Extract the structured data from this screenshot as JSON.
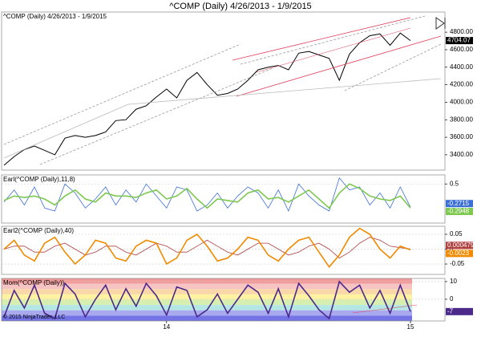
{
  "chart_data": [
    {
      "type": "line",
      "title": "^COMP (Daily)  4/26/2013 - 1/9/2015",
      "series": [
        {
          "color": "#000000",
          "values": [
            3280,
            3380,
            3460,
            3500,
            3450,
            3400,
            3590,
            3620,
            3600,
            3620,
            3660,
            3790,
            3800,
            3920,
            3960,
            4060,
            4150,
            4050,
            4250,
            4340,
            4200,
            4080,
            4100,
            4150,
            4250,
            4370,
            4400,
            4420,
            4370,
            4560,
            4580,
            4540,
            4500,
            4250,
            4550,
            4680,
            4760,
            4780,
            4650,
            4790,
            4704.07
          ],
          "last_label_color": "#000000"
        }
      ],
      "ylim": [
        3225,
        5030
      ],
      "yticks": [
        {
          "value": 3400,
          "label": "3400.00"
        },
        {
          "value": 3600,
          "label": "3600.00"
        },
        {
          "value": 3800,
          "label": "3800.00"
        },
        {
          "value": 4000,
          "label": "4000.00"
        },
        {
          "value": 4200,
          "label": "4200.00"
        },
        {
          "value": 4400,
          "label": "4400.00"
        },
        {
          "value": 4600,
          "label": "4600.00"
        },
        {
          "value": 4800,
          "label": "4800.00"
        }
      ]
    },
    {
      "type": "line",
      "title": "Earl(^COMP (Daily),11,8)",
      "series": [
        {
          "color": "#3b6fd6",
          "values": [
            -0.1,
            0.3,
            -0.2,
            0.4,
            -0.3,
            -0.4,
            0.5,
            0.2,
            -0.3,
            0.0,
            0.4,
            -0.2,
            0.3,
            -0.1,
            0.5,
            0.1,
            -0.3,
            0.4,
            0.3,
            -0.4,
            -0.2,
            0.2,
            -0.3,
            0.1,
            0.4,
            0.2,
            -0.3,
            0.3,
            -0.4,
            0.5,
            0.1,
            -0.2,
            -0.4,
            0.7,
            0.3,
            0.4,
            -0.2,
            0.2,
            -0.3,
            0.4,
            -0.2715
          ]
        },
        {
          "color": "#7ec850",
          "values": [
            -0.05,
            0.1,
            0.05,
            0.1,
            0.0,
            -0.2,
            0.1,
            0.3,
            0.0,
            -0.1,
            0.2,
            0.1,
            0.1,
            0.05,
            0.2,
            0.3,
            0.0,
            0.1,
            0.35,
            0.0,
            -0.3,
            0.0,
            -0.05,
            -0.1,
            0.2,
            0.3,
            0.0,
            0.05,
            -0.1,
            0.1,
            0.3,
            0.0,
            -0.3,
            0.2,
            0.5,
            0.35,
            0.1,
            0.0,
            -0.05,
            0.1,
            -0.2948
          ]
        }
      ],
      "ylim": [
        -0.8,
        0.8
      ],
      "yticks": [
        0.5
      ]
    },
    {
      "type": "line",
      "title": "Earl2(^COMP (Daily),40)",
      "series": [
        {
          "color": "#b04040",
          "values": [
            0.0,
            0.01,
            0.01,
            -0.01,
            -0.01,
            0.01,
            0.02,
            0.0,
            -0.02,
            -0.01,
            0.01,
            0.01,
            -0.01,
            -0.02,
            0.0,
            0.02,
            0.01,
            -0.01,
            -0.01,
            0.01,
            0.03,
            0.01,
            -0.01,
            -0.02,
            0.0,
            0.02,
            0.02,
            0.0,
            -0.02,
            -0.01,
            0.01,
            0.02,
            0.0,
            -0.03,
            -0.01,
            0.02,
            0.04,
            0.03,
            0.01,
            0.005,
            0.000479
          ]
        },
        {
          "color": "#f08a00",
          "values": [
            0.0,
            0.03,
            -0.02,
            -0.04,
            0.02,
            0.04,
            -0.01,
            -0.05,
            -0.02,
            0.03,
            0.02,
            -0.03,
            -0.04,
            0.01,
            0.03,
            0.02,
            -0.05,
            -0.03,
            0.03,
            0.05,
            0.01,
            -0.04,
            -0.03,
            0.0,
            0.04,
            0.03,
            -0.02,
            -0.04,
            0.0,
            0.03,
            0.04,
            -0.01,
            -0.06,
            -0.02,
            0.04,
            0.07,
            0.05,
            0.0,
            -0.03,
            0.01,
            -0.0023
          ]
        }
      ],
      "ylim": [
        -0.085,
        0.077
      ],
      "yticks": [
        0.05,
        0,
        -0.05
      ]
    },
    {
      "type": "line",
      "title": "Mom(^COMP (Daily))",
      "series": [
        {
          "color": "#4b2a8a",
          "values": [
            -10,
            5,
            -5,
            8,
            -8,
            -11,
            9,
            3,
            -10,
            0,
            8,
            -6,
            6,
            -4,
            9,
            2,
            -9,
            7,
            5,
            -10,
            -6,
            3,
            -8,
            0,
            8,
            4,
            -8,
            6,
            -10,
            9,
            2,
            -6,
            -11,
            10,
            4,
            8,
            -5,
            5,
            -8,
            8,
            -7
          ]
        }
      ],
      "ylim": [
        -12.3,
        11.8
      ],
      "yticks": [
        10,
        0
      ],
      "annotations": [
        "© 2015 NinjaTrader, LLC"
      ],
      "categories": [
        null,
        null,
        null,
        null,
        null,
        null,
        null,
        null,
        null,
        null,
        null,
        null,
        null,
        null,
        null,
        null,
        "14",
        null,
        null,
        null,
        null,
        null,
        null,
        null,
        null,
        null,
        null,
        null,
        null,
        null,
        null,
        null,
        null,
        null,
        null,
        null,
        null,
        null,
        null,
        null,
        "15"
      ]
    }
  ]
}
